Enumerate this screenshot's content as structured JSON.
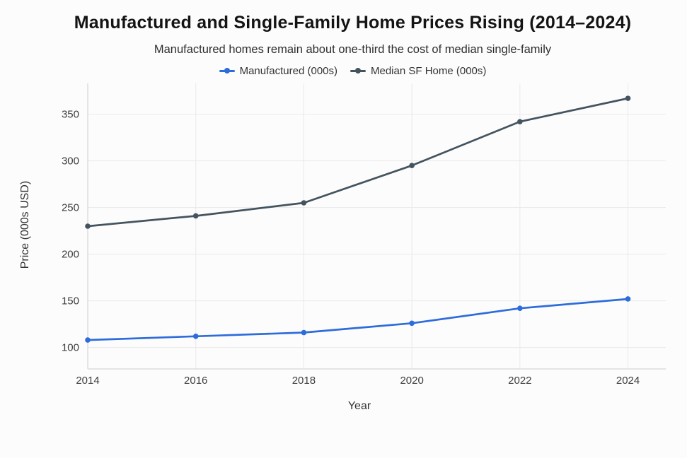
{
  "page": {
    "background": "#fcfcfc"
  },
  "header": {
    "title": "Manufactured and Single-Family Home Prices Rising (2014–2024)",
    "subtitle": "Manufactured homes remain about one-third the cost of median single-family"
  },
  "chart_data": {
    "type": "line",
    "title": "Manufactured and Single-Family Home Prices Rising (2014–2024)",
    "subtitle": "Manufactured homes remain about one-third the cost of median single-family",
    "x": [
      2014,
      2016,
      2018,
      2020,
      2022,
      2024
    ],
    "series": [
      {
        "name": "Manufactured (000s)",
        "values": [
          108,
          112,
          116,
          126,
          142,
          152
        ],
        "color": "#2d6cdb"
      },
      {
        "name": "Median SF Home (000s)",
        "values": [
          230,
          241,
          255,
          295,
          342,
          367
        ],
        "color": "#44545f"
      }
    ],
    "xlabel": "Year",
    "ylabel": "Price (000s USD)",
    "x_ticks": [
      2014,
      2016,
      2018,
      2020,
      2022,
      2024
    ],
    "y_ticks": [
      100,
      150,
      200,
      250,
      300,
      350
    ],
    "xlim": [
      2014,
      2024.7
    ],
    "ylim": [
      77,
      383
    ],
    "grid": true,
    "legend_position": "top-center",
    "marker": "circle",
    "colors": {
      "grid": "#e9e9e9",
      "axis": "#d6d6d6",
      "tick_label": "#3e3e3e"
    }
  }
}
